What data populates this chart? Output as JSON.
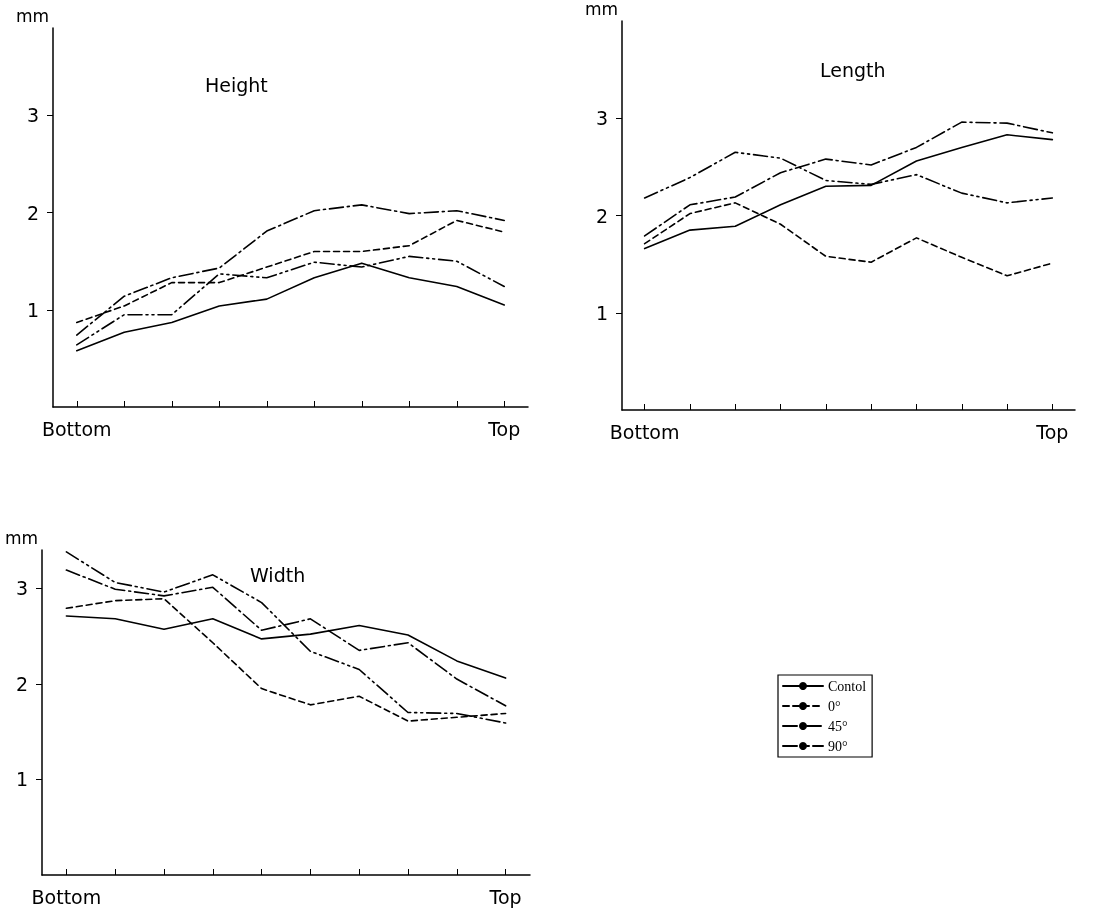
{
  "chart_data": [
    {
      "type": "line",
      "title": "Height",
      "ylabel": "mm",
      "categories": [
        "Bottom",
        null,
        null,
        null,
        null,
        null,
        null,
        null,
        null,
        "Top"
      ],
      "ylim": [
        0,
        3.9
      ],
      "yticks": [
        1,
        2,
        3
      ],
      "grid": false,
      "legend": false,
      "marker": "none",
      "series": [
        {
          "color": "#000000",
          "line_style": "solid",
          "values": [
            0.58,
            0.77,
            0.87,
            1.04,
            1.11,
            1.33,
            1.48,
            1.33,
            1.24,
            1.05
          ]
        },
        {
          "color": "#000000",
          "line_style": "dashed",
          "values": [
            0.87,
            1.04,
            1.28,
            1.28,
            1.44,
            1.6,
            1.6,
            1.66,
            1.92,
            1.8
          ]
        },
        {
          "color": "#000000",
          "line_style": "dashdot",
          "values": [
            0.74,
            1.14,
            1.33,
            1.43,
            1.81,
            2.02,
            2.08,
            1.99,
            2.02,
            1.92
          ]
        },
        {
          "color": "#000000",
          "line_style": "dashdotdot",
          "values": [
            0.64,
            0.95,
            0.95,
            1.37,
            1.33,
            1.49,
            1.44,
            1.55,
            1.5,
            1.24
          ]
        }
      ]
    },
    {
      "type": "line",
      "title": "Length",
      "ylabel": "mm",
      "categories": [
        "Bottom",
        null,
        null,
        null,
        null,
        null,
        null,
        null,
        null,
        "Top"
      ],
      "ylim": [
        0,
        4
      ],
      "yticks": [
        1,
        2,
        3
      ],
      "grid": false,
      "legend": false,
      "marker": "none",
      "series": [
        {
          "color": "#000000",
          "line_style": "solid",
          "values": [
            1.66,
            1.85,
            1.89,
            2.11,
            2.3,
            2.31,
            2.56,
            2.7,
            2.83,
            2.78
          ]
        },
        {
          "color": "#000000",
          "line_style": "dashed",
          "values": [
            1.71,
            2.02,
            2.13,
            1.91,
            1.58,
            1.52,
            1.77,
            1.57,
            1.38,
            1.51
          ]
        },
        {
          "color": "#000000",
          "line_style": "dashdot",
          "values": [
            1.79,
            2.11,
            2.19,
            2.44,
            2.58,
            2.52,
            2.7,
            2.96,
            2.95,
            2.85
          ]
        },
        {
          "color": "#000000",
          "line_style": "dashdotdot",
          "values": [
            2.18,
            2.39,
            2.65,
            2.59,
            2.36,
            2.32,
            2.42,
            2.23,
            2.13,
            2.18
          ]
        }
      ]
    },
    {
      "type": "line",
      "title": "Width",
      "ylabel": "mm",
      "categories": [
        "Bottom",
        null,
        null,
        null,
        null,
        null,
        null,
        null,
        null,
        "Top"
      ],
      "ylim": [
        0,
        3.4
      ],
      "yticks": [
        1,
        2,
        3
      ],
      "grid": false,
      "legend": "right",
      "marker": "none",
      "series": [
        {
          "name": "Contol",
          "color": "#000000",
          "line_style": "solid",
          "values": [
            2.71,
            2.68,
            2.57,
            2.68,
            2.47,
            2.52,
            2.61,
            2.51,
            2.24,
            2.06
          ]
        },
        {
          "name": "0°",
          "color": "#000000",
          "line_style": "dashed",
          "values": [
            2.79,
            2.87,
            2.89,
            2.43,
            1.95,
            1.78,
            1.87,
            1.61,
            1.65,
            1.69
          ]
        },
        {
          "name": "45°",
          "color": "#000000",
          "line_style": "dashdot",
          "values": [
            3.19,
            2.99,
            2.92,
            3.01,
            2.56,
            2.68,
            2.35,
            2.43,
            2.05,
            1.77
          ]
        },
        {
          "name": "90°",
          "color": "#000000",
          "line_style": "dashdotdot",
          "values": [
            3.38,
            3.06,
            2.96,
            3.14,
            2.85,
            2.34,
            2.15,
            1.7,
            1.69,
            1.59
          ]
        }
      ]
    }
  ]
}
